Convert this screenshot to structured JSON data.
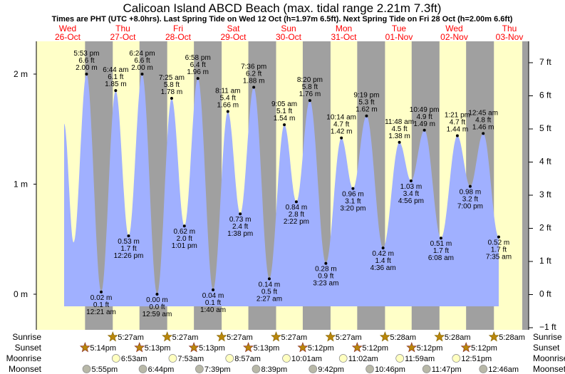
{
  "chart_data": {
    "type": "area",
    "title": "Calicoan Island ABCD Beach (max. tidal range 2.21m 7.3ft)",
    "subtitle": "Times are PHT (UTC +8.0hrs). Last Spring Tide on Wed 12 Oct (h=1.97m 6.5ft). Next Spring Tide on Fri 28 Oct (h=2.00m 6.6ft)",
    "days": [
      {
        "dow": "Wed",
        "date": "26-Oct"
      },
      {
        "dow": "Thu",
        "date": "27-Oct"
      },
      {
        "dow": "Fri",
        "date": "28-Oct"
      },
      {
        "dow": "Sat",
        "date": "29-Oct"
      },
      {
        "dow": "Sun",
        "date": "30-Oct"
      },
      {
        "dow": "Mon",
        "date": "31-Oct"
      },
      {
        "dow": "Tue",
        "date": "01-Nov"
      },
      {
        "dow": "Wed",
        "date": "02-Nov"
      },
      {
        "dow": "Thu",
        "date": "03-Nov"
      }
    ],
    "y_left": {
      "ticks": [
        "0 m",
        "1 m",
        "2 m"
      ],
      "values": [
        0,
        1,
        2
      ]
    },
    "y_right": {
      "ticks": [
        "−1 ft",
        "0 ft",
        "1 ft",
        "2 ft",
        "3 ft",
        "4 ft",
        "5 ft",
        "6 ft",
        "7 ft"
      ],
      "values": [
        -1,
        0,
        1,
        2,
        3,
        4,
        5,
        6,
        7
      ]
    },
    "curve_lead": [
      {
        "day": 0,
        "time": "8:00am",
        "m": 1.55
      },
      {
        "day": 0,
        "time": "12:10pm",
        "m": 0.47
      }
    ],
    "extremes": [
      {
        "type": "high",
        "day": 0,
        "time": "5:53 pm",
        "m": "2.00 m",
        "ft": "6.6 ft"
      },
      {
        "type": "low",
        "day": 1,
        "time": "12:21 am",
        "m": "0.02 m",
        "ft": "0.1 ft"
      },
      {
        "type": "high",
        "day": 1,
        "time": "6:44 am",
        "m": "1.85 m",
        "ft": "6.1 ft"
      },
      {
        "type": "low",
        "day": 1,
        "time": "12:26 pm",
        "m": "0.53 m",
        "ft": "1.7 ft"
      },
      {
        "type": "high",
        "day": 1,
        "time": "6:24 pm",
        "m": "2.00 m",
        "ft": "6.6 ft"
      },
      {
        "type": "low",
        "day": 2,
        "time": "12:59 am",
        "m": "0.00 m",
        "ft": "0.0 ft"
      },
      {
        "type": "high",
        "day": 2,
        "time": "7:25 am",
        "m": "1.78 m",
        "ft": "5.8 ft"
      },
      {
        "type": "low",
        "day": 2,
        "time": "1:01 pm",
        "m": "0.62 m",
        "ft": "2.0 ft"
      },
      {
        "type": "high",
        "day": 2,
        "time": "6:58 pm",
        "m": "1.96 m",
        "ft": "6.4 ft"
      },
      {
        "type": "low",
        "day": 3,
        "time": "1:40 am",
        "m": "0.04 m",
        "ft": "0.1 ft"
      },
      {
        "type": "high",
        "day": 3,
        "time": "8:11 am",
        "m": "1.66 m",
        "ft": "5.4 ft"
      },
      {
        "type": "low",
        "day": 3,
        "time": "1:38 pm",
        "m": "0.73 m",
        "ft": "2.4 ft"
      },
      {
        "type": "high",
        "day": 3,
        "time": "7:36 pm",
        "m": "1.88 m",
        "ft": "6.2 ft"
      },
      {
        "type": "low",
        "day": 4,
        "time": "2:27 am",
        "m": "0.14 m",
        "ft": "0.5 ft"
      },
      {
        "type": "high",
        "day": 4,
        "time": "9:05 am",
        "m": "1.54 m",
        "ft": "5.1 ft"
      },
      {
        "type": "low",
        "day": 4,
        "time": "2:22 pm",
        "m": "0.84 m",
        "ft": "2.8 ft"
      },
      {
        "type": "high",
        "day": 4,
        "time": "8:20 pm",
        "m": "1.76 m",
        "ft": "5.8 ft"
      },
      {
        "type": "low",
        "day": 5,
        "time": "3:23 am",
        "m": "0.28 m",
        "ft": "0.9 ft"
      },
      {
        "type": "high",
        "day": 5,
        "time": "10:14 am",
        "m": "1.42 m",
        "ft": "4.7 ft"
      },
      {
        "type": "low",
        "day": 5,
        "time": "3:20 pm",
        "m": "0.96 m",
        "ft": "3.1 ft"
      },
      {
        "type": "high",
        "day": 5,
        "time": "9:19 pm",
        "m": "1.62 m",
        "ft": "5.3 ft"
      },
      {
        "type": "low",
        "day": 6,
        "time": "4:36 am",
        "m": "0.42 m",
        "ft": "1.4 ft"
      },
      {
        "type": "high",
        "day": 6,
        "time": "11:48 am",
        "m": "1.38 m",
        "ft": "4.5 ft"
      },
      {
        "type": "low",
        "day": 6,
        "time": "4:56 pm",
        "m": "1.03 m",
        "ft": "3.4 ft"
      },
      {
        "type": "high",
        "day": 6,
        "time": "10:49 pm",
        "m": "1.49 m",
        "ft": "4.9 ft"
      },
      {
        "type": "low",
        "day": 7,
        "time": "6:08 am",
        "m": "0.51 m",
        "ft": "1.7 ft"
      },
      {
        "type": "high",
        "day": 7,
        "time": "1:21 pm",
        "m": "1.44 m",
        "ft": "4.7 ft"
      },
      {
        "type": "low",
        "day": 7,
        "time": "7:00 pm",
        "m": "0.98 m",
        "ft": "3.2 ft"
      },
      {
        "type": "high",
        "day": 8,
        "time": "12:45 am",
        "m": "1.46 m",
        "ft": "4.8 ft"
      },
      {
        "type": "low",
        "day": 8,
        "time": "7:35 am",
        "m": "0.52 m",
        "ft": "1.7 ft"
      }
    ],
    "rows": [
      {
        "label": "Sunrise",
        "kind": "sunrise",
        "events": [
          {
            "day": 1,
            "time": "5:27am"
          },
          {
            "day": 2,
            "time": "5:27am"
          },
          {
            "day": 3,
            "time": "5:27am"
          },
          {
            "day": 4,
            "time": "5:27am"
          },
          {
            "day": 5,
            "time": "5:27am"
          },
          {
            "day": 6,
            "time": "5:28am"
          },
          {
            "day": 7,
            "time": "5:28am"
          },
          {
            "day": 8,
            "time": "5:28am"
          }
        ]
      },
      {
        "label": "Sunset",
        "kind": "sunset",
        "events": [
          {
            "day": 0,
            "time": "5:14pm"
          },
          {
            "day": 1,
            "time": "5:13pm"
          },
          {
            "day": 2,
            "time": "5:13pm"
          },
          {
            "day": 3,
            "time": "5:13pm"
          },
          {
            "day": 4,
            "time": "5:12pm"
          },
          {
            "day": 5,
            "time": "5:12pm"
          },
          {
            "day": 6,
            "time": "5:12pm"
          },
          {
            "day": 7,
            "time": "5:12pm"
          }
        ]
      },
      {
        "label": "Moonrise",
        "kind": "moonrise",
        "events": [
          {
            "day": 1,
            "time": "6:53am"
          },
          {
            "day": 2,
            "time": "7:53am"
          },
          {
            "day": 3,
            "time": "8:57am"
          },
          {
            "day": 4,
            "time": "10:01am"
          },
          {
            "day": 5,
            "time": "11:02am"
          },
          {
            "day": 6,
            "time": "11:59am"
          },
          {
            "day": 7,
            "time": "12:51pm"
          }
        ]
      },
      {
        "label": "Moonset",
        "kind": "moonset",
        "events": [
          {
            "day": 0,
            "time": "5:55pm"
          },
          {
            "day": 1,
            "time": "6:44pm"
          },
          {
            "day": 2,
            "time": "7:39pm"
          },
          {
            "day": 3,
            "time": "8:39pm"
          },
          {
            "day": 4,
            "time": "9:42pm"
          },
          {
            "day": 5,
            "time": "10:46pm"
          },
          {
            "day": 6,
            "time": "11:47pm"
          },
          {
            "day": 8,
            "time": "12:46am"
          }
        ]
      }
    ],
    "colors": {
      "day": "#ffffc8",
      "night": "#a0a0a0",
      "water": "#a0b0ff",
      "daylabel": "#ff0000",
      "sun": "#b8860b",
      "moonrise": "#ffffc0",
      "moonset": "#b8b8a8"
    }
  }
}
